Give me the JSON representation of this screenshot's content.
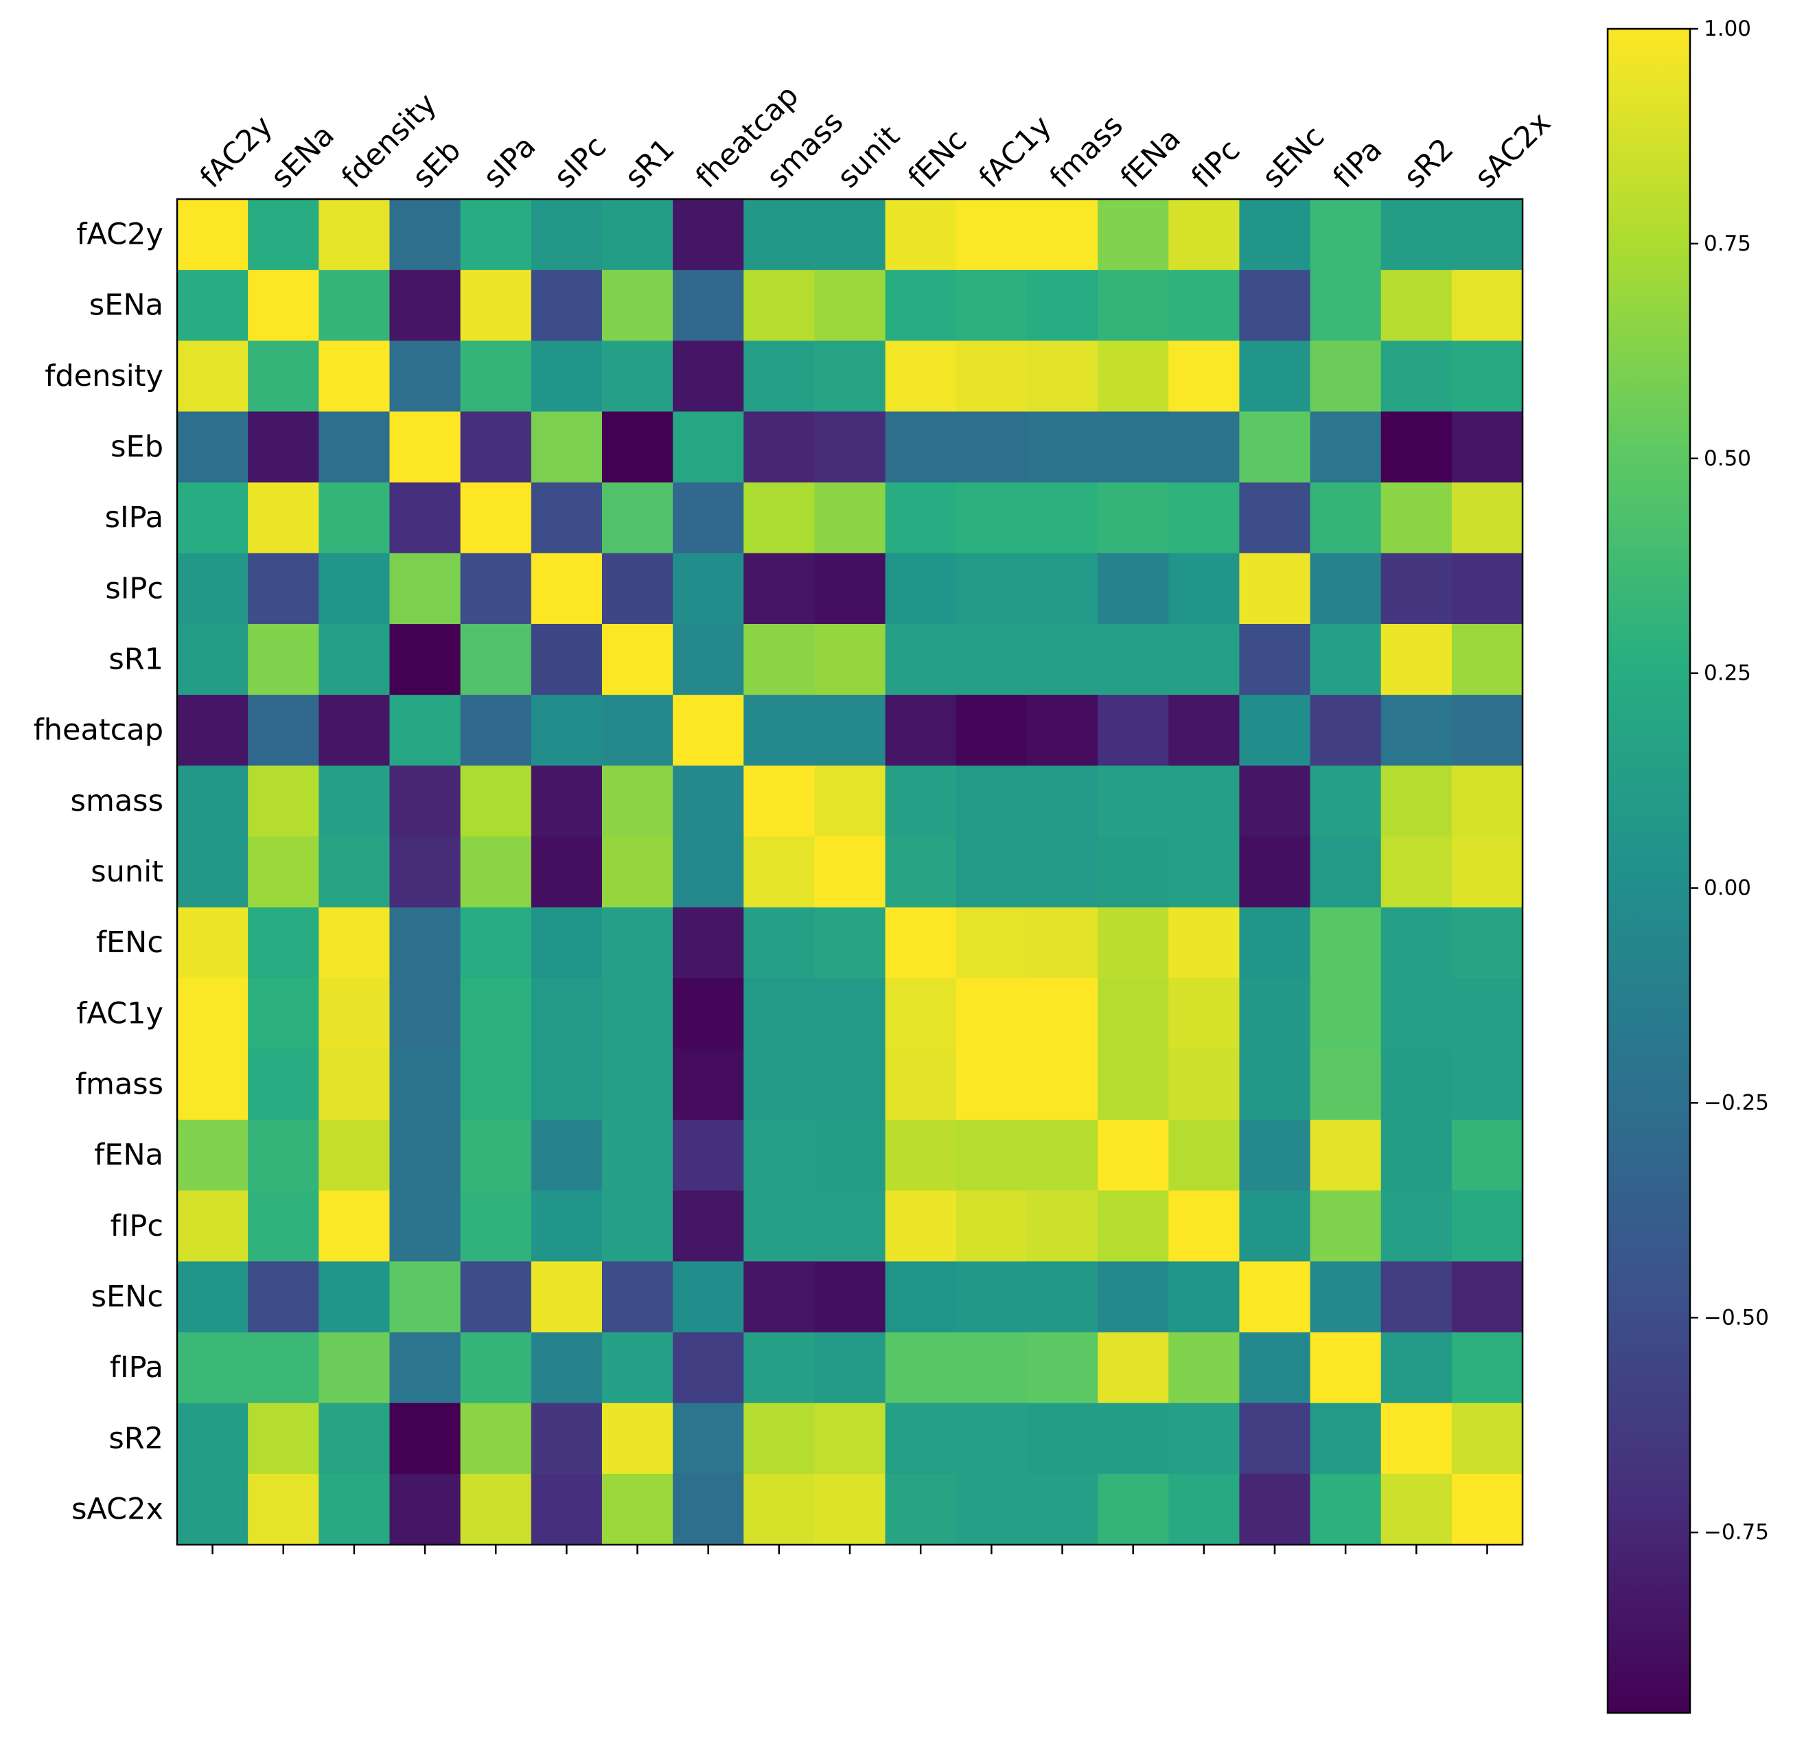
{
  "chart_data": {
    "type": "heatmap",
    "title": "",
    "colormap": "viridis",
    "labels": [
      "fAC2y",
      "sENa",
      "fdensity",
      "sEb",
      "sIPa",
      "sIPc",
      "sR1",
      "fheatcap",
      "smass",
      "sunit",
      "fENc",
      "fAC1y",
      "fmass",
      "fENa",
      "fIPc",
      "sENc",
      "fIPa",
      "sR2",
      "sAC2x"
    ],
    "values": [
      [
        1.0,
        0.25,
        0.93,
        -0.25,
        0.25,
        0.08,
        0.12,
        -0.85,
        0.08,
        0.08,
        0.95,
        0.99,
        0.99,
        0.62,
        0.88,
        0.05,
        0.35,
        0.12,
        0.12
      ],
      [
        0.25,
        1.0,
        0.32,
        -0.85,
        0.95,
        -0.5,
        0.62,
        -0.3,
        0.78,
        0.7,
        0.25,
        0.28,
        0.25,
        0.32,
        0.3,
        -0.5,
        0.35,
        0.78,
        0.93
      ],
      [
        0.93,
        0.32,
        1.0,
        -0.25,
        0.32,
        0.05,
        0.15,
        -0.85,
        0.15,
        0.18,
        0.97,
        0.94,
        0.92,
        0.83,
        0.99,
        0.05,
        0.55,
        0.18,
        0.22
      ],
      [
        -0.25,
        -0.85,
        -0.25,
        1.0,
        -0.7,
        0.6,
        -0.96,
        0.2,
        -0.75,
        -0.72,
        -0.25,
        -0.25,
        -0.22,
        -0.22,
        -0.22,
        0.5,
        -0.2,
        -0.96,
        -0.85
      ],
      [
        0.25,
        0.95,
        0.32,
        -0.7,
        1.0,
        -0.5,
        0.45,
        -0.3,
        0.75,
        0.65,
        0.25,
        0.28,
        0.28,
        0.32,
        0.3,
        -0.5,
        0.32,
        0.65,
        0.85
      ],
      [
        0.08,
        -0.5,
        0.05,
        0.6,
        -0.5,
        1.0,
        -0.55,
        0.0,
        -0.85,
        -0.88,
        0.05,
        0.1,
        0.1,
        -0.1,
        0.05,
        0.95,
        -0.1,
        -0.65,
        -0.7
      ],
      [
        0.12,
        0.62,
        0.15,
        -0.96,
        0.45,
        -0.55,
        1.0,
        -0.05,
        0.65,
        0.68,
        0.15,
        0.15,
        0.15,
        0.15,
        0.15,
        -0.5,
        0.15,
        0.95,
        0.7
      ],
      [
        -0.85,
        -0.3,
        -0.85,
        0.2,
        -0.3,
        0.0,
        -0.05,
        1.0,
        -0.05,
        -0.05,
        -0.85,
        -0.93,
        -0.9,
        -0.7,
        -0.85,
        0.0,
        -0.6,
        -0.2,
        -0.25
      ],
      [
        0.08,
        0.78,
        0.15,
        -0.75,
        0.75,
        -0.85,
        0.65,
        -0.05,
        1.0,
        0.93,
        0.15,
        0.1,
        0.1,
        0.15,
        0.15,
        -0.85,
        0.15,
        0.78,
        0.88
      ],
      [
        0.08,
        0.7,
        0.18,
        -0.72,
        0.65,
        -0.88,
        0.68,
        -0.05,
        0.93,
        1.0,
        0.18,
        0.1,
        0.1,
        0.12,
        0.15,
        -0.88,
        0.1,
        0.82,
        0.9
      ],
      [
        0.95,
        0.25,
        0.97,
        -0.25,
        0.25,
        0.05,
        0.15,
        -0.85,
        0.15,
        0.18,
        1.0,
        0.93,
        0.92,
        0.8,
        0.95,
        0.05,
        0.48,
        0.15,
        0.18
      ],
      [
        0.99,
        0.28,
        0.94,
        -0.25,
        0.28,
        0.1,
        0.15,
        -0.93,
        0.1,
        0.1,
        0.93,
        1.0,
        1.0,
        0.78,
        0.88,
        0.08,
        0.48,
        0.15,
        0.15
      ],
      [
        0.99,
        0.25,
        0.92,
        -0.22,
        0.28,
        0.1,
        0.15,
        -0.9,
        0.1,
        0.1,
        0.92,
        1.0,
        1.0,
        0.78,
        0.85,
        0.08,
        0.5,
        0.12,
        0.15
      ],
      [
        0.62,
        0.32,
        0.83,
        -0.22,
        0.32,
        -0.1,
        0.15,
        -0.7,
        0.15,
        0.12,
        0.8,
        0.78,
        0.78,
        1.0,
        0.78,
        -0.05,
        0.92,
        0.12,
        0.32
      ],
      [
        0.88,
        0.3,
        0.99,
        -0.22,
        0.3,
        0.05,
        0.15,
        -0.85,
        0.15,
        0.15,
        0.95,
        0.88,
        0.85,
        0.78,
        1.0,
        0.05,
        0.62,
        0.15,
        0.22
      ],
      [
        0.05,
        -0.5,
        0.05,
        0.5,
        -0.5,
        0.95,
        -0.5,
        0.0,
        -0.85,
        -0.88,
        0.05,
        0.08,
        0.08,
        -0.05,
        0.05,
        1.0,
        -0.05,
        -0.6,
        -0.75
      ],
      [
        0.35,
        0.35,
        0.55,
        -0.2,
        0.32,
        -0.1,
        0.15,
        -0.6,
        0.15,
        0.1,
        0.48,
        0.48,
        0.5,
        0.92,
        0.62,
        -0.05,
        1.0,
        0.1,
        0.28
      ],
      [
        0.12,
        0.78,
        0.18,
        -0.96,
        0.65,
        -0.65,
        0.95,
        -0.2,
        0.78,
        0.82,
        0.15,
        0.15,
        0.12,
        0.12,
        0.15,
        -0.6,
        0.1,
        1.0,
        0.85
      ],
      [
        0.12,
        0.93,
        0.22,
        -0.85,
        0.85,
        -0.7,
        0.7,
        -0.25,
        0.88,
        0.9,
        0.18,
        0.15,
        0.15,
        0.32,
        0.22,
        -0.75,
        0.28,
        0.85,
        1.0
      ]
    ],
    "vmin": -0.96,
    "vmax": 1.0,
    "colorbar": {
      "ticks": [
        1.0,
        0.75,
        0.5,
        0.25,
        0.0,
        -0.25,
        -0.5,
        -0.75
      ],
      "tick_labels": [
        "1.00",
        "0.75",
        "0.50",
        "0.25",
        "0.00",
        "−0.25",
        "−0.50",
        "−0.75"
      ]
    },
    "xlabel": "",
    "ylabel": ""
  }
}
